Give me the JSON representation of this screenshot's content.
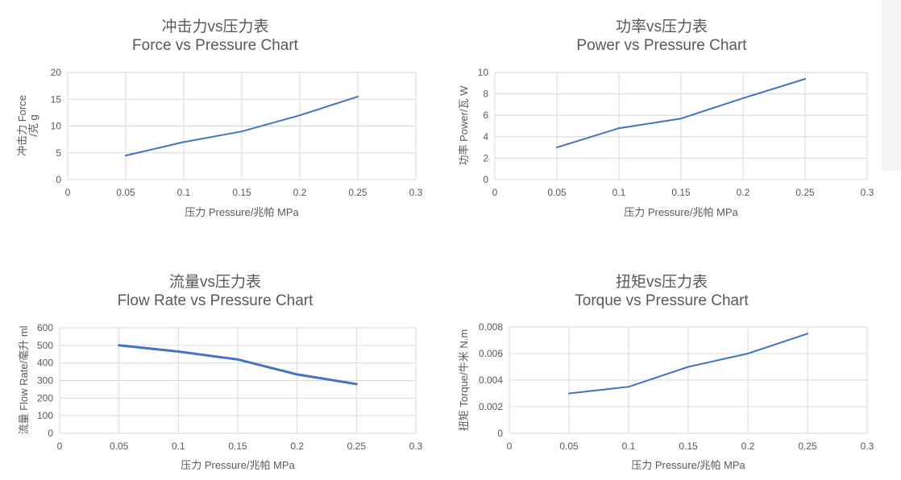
{
  "chart_data": [
    {
      "type": "line",
      "title": "冲击力vs压力表",
      "subtitle": "Force vs Pressure Chart",
      "xlabel": "压力 Pressure/兆帕 MPa",
      "ylabel": [
        "冲击力 Force",
        "/克 g"
      ],
      "xlim": [
        0,
        0.3
      ],
      "ylim": [
        0,
        20
      ],
      "xticks": [
        0,
        0.05,
        0.1,
        0.15,
        0.2,
        0.25,
        0.3
      ],
      "xtick_labels": [
        "0",
        "0.05",
        "0.1",
        "0.15",
        "0.2",
        "0.25",
        "0.3"
      ],
      "yticks": [
        0,
        5,
        10,
        15,
        20
      ],
      "ytick_labels": [
        "0",
        "5",
        "10",
        "15",
        "20"
      ],
      "grid": true,
      "series": [
        {
          "color": "#4472c4",
          "points": [
            [
              0.05,
              4.5
            ],
            [
              0.1,
              7
            ],
            [
              0.15,
              9
            ],
            [
              0.2,
              12
            ],
            [
              0.25,
              15.5
            ]
          ]
        }
      ]
    },
    {
      "type": "line",
      "title": "功率vs压力表",
      "subtitle": "Power vs Pressure Chart",
      "xlabel": "压力 Pressure/兆帕 MPa",
      "ylabel": [
        "功率 Power/瓦 W"
      ],
      "xlim": [
        0,
        0.3
      ],
      "ylim": [
        0,
        10
      ],
      "xticks": [
        0,
        0.05,
        0.1,
        0.15,
        0.2,
        0.25,
        0.3
      ],
      "xtick_labels": [
        "0",
        "0.05",
        "0.1",
        "0.15",
        "0.2",
        "0.25",
        "0.3"
      ],
      "yticks": [
        0,
        2,
        4,
        6,
        8,
        10
      ],
      "ytick_labels": [
        "0",
        "2",
        "4",
        "6",
        "8",
        "10"
      ],
      "grid": true,
      "series": [
        {
          "color": "#4472c4",
          "points": [
            [
              0.05,
              3
            ],
            [
              0.1,
              4.8
            ],
            [
              0.15,
              5.7
            ],
            [
              0.2,
              7.6
            ],
            [
              0.25,
              9.4
            ]
          ]
        }
      ]
    },
    {
      "type": "line",
      "title": "流量vs压力表",
      "subtitle": "Flow Rate vs Pressure Chart",
      "xlabel": "压力 Pressure/兆帕 MPa",
      "ylabel": [
        "流量 Flow Rate/毫升 ml"
      ],
      "xlim": [
        0,
        0.3
      ],
      "ylim": [
        0,
        600
      ],
      "xticks": [
        0,
        0.05,
        0.1,
        0.15,
        0.2,
        0.25,
        0.3
      ],
      "xtick_labels": [
        "0",
        "0.05",
        "0.1",
        "0.15",
        "0.2",
        "0.25",
        "0.3"
      ],
      "yticks": [
        0,
        100,
        200,
        300,
        400,
        500,
        600
      ],
      "ytick_labels": [
        "0",
        "100",
        "200",
        "300",
        "400",
        "500",
        "600"
      ],
      "grid": true,
      "series": [
        {
          "color": "#4472c4",
          "points": [
            [
              0.05,
              500
            ],
            [
              0.1,
              465
            ],
            [
              0.15,
              420
            ],
            [
              0.2,
              335
            ],
            [
              0.25,
              280
            ]
          ]
        }
      ]
    },
    {
      "type": "line",
      "title": "扭矩vs压力表",
      "subtitle": "Torque vs Pressure Chart",
      "xlabel": "压力 Pressure/兆帕 MPa",
      "ylabel": [
        "扭矩 Torque/牛米 N.m"
      ],
      "xlim": [
        0,
        0.3
      ],
      "ylim": [
        0,
        0.008
      ],
      "xticks": [
        0,
        0.05,
        0.1,
        0.15,
        0.2,
        0.25,
        0.3
      ],
      "xtick_labels": [
        "0",
        "0.05",
        "0.1",
        "0.15",
        "0.2",
        "0.25",
        "0.3"
      ],
      "yticks": [
        0,
        0.002,
        0.004,
        0.006,
        0.008
      ],
      "ytick_labels": [
        "0",
        "0.002",
        "0.004",
        "0.006",
        "0.008"
      ],
      "grid": true,
      "series": [
        {
          "color": "#4472c4",
          "points": [
            [
              0.05,
              0.003
            ],
            [
              0.1,
              0.0035
            ],
            [
              0.15,
              0.005
            ],
            [
              0.2,
              0.006
            ],
            [
              0.25,
              0.0075
            ]
          ]
        }
      ]
    }
  ]
}
